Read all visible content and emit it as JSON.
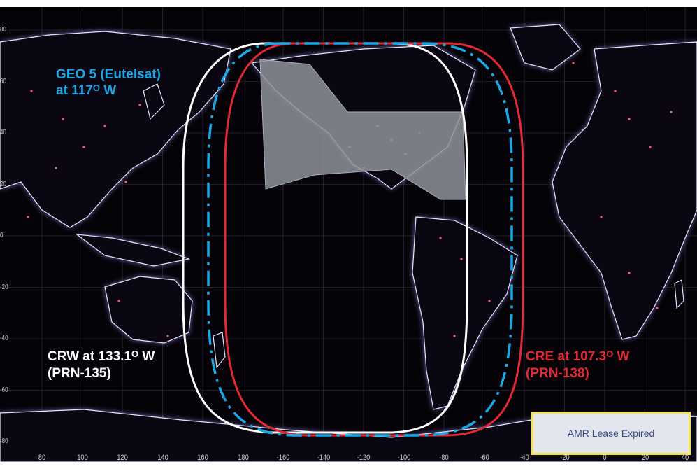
{
  "colors": {
    "geo5": "#1aa7e6",
    "crw": "#ffffff",
    "cre": "#e32a33",
    "land_outline": "#e8e4ff",
    "land_glow": "#8b7fd6",
    "ocean": "#050308",
    "restricted_area": "#8f9299",
    "legend_border": "#f2e45a",
    "legend_fill": "#e4e6ee",
    "legend_text": "#3b4a86"
  },
  "labels": {
    "geo5": {
      "line1": "GEO 5 (Eutelsat)",
      "line2_prefix": "at 117",
      "degree": "O",
      "line2_suffix": " W"
    },
    "crw": {
      "line1_prefix": "CRW at 133.1",
      "degree": "O",
      "line1_suffix": " W",
      "line2": "(PRN-135)"
    },
    "cre": {
      "line1_prefix": "CRE at 107.3",
      "degree": "O",
      "line1_suffix": " W",
      "line2": "(PRN-138)"
    }
  },
  "legend": {
    "text": "AMR Lease Expired"
  },
  "axes": {
    "latitude_ticks": [
      "80",
      "60",
      "40",
      "20",
      "0",
      "-20",
      "-40",
      "-60",
      "-80"
    ],
    "longitude_ticks": [
      "80",
      "100",
      "120",
      "140",
      "160",
      "180",
      "-160",
      "-140",
      "-120",
      "-100",
      "-80",
      "-60",
      "-40",
      "-20",
      "0",
      "20",
      "40"
    ]
  },
  "footprints": [
    {
      "name": "GEO 5 (Eutelsat)",
      "longitude_deg": -117,
      "line_style": "dashed"
    },
    {
      "name": "CRW",
      "longitude_deg": -133.1,
      "line_style": "solid"
    },
    {
      "name": "CRE",
      "longitude_deg": -107.3,
      "line_style": "solid"
    }
  ]
}
